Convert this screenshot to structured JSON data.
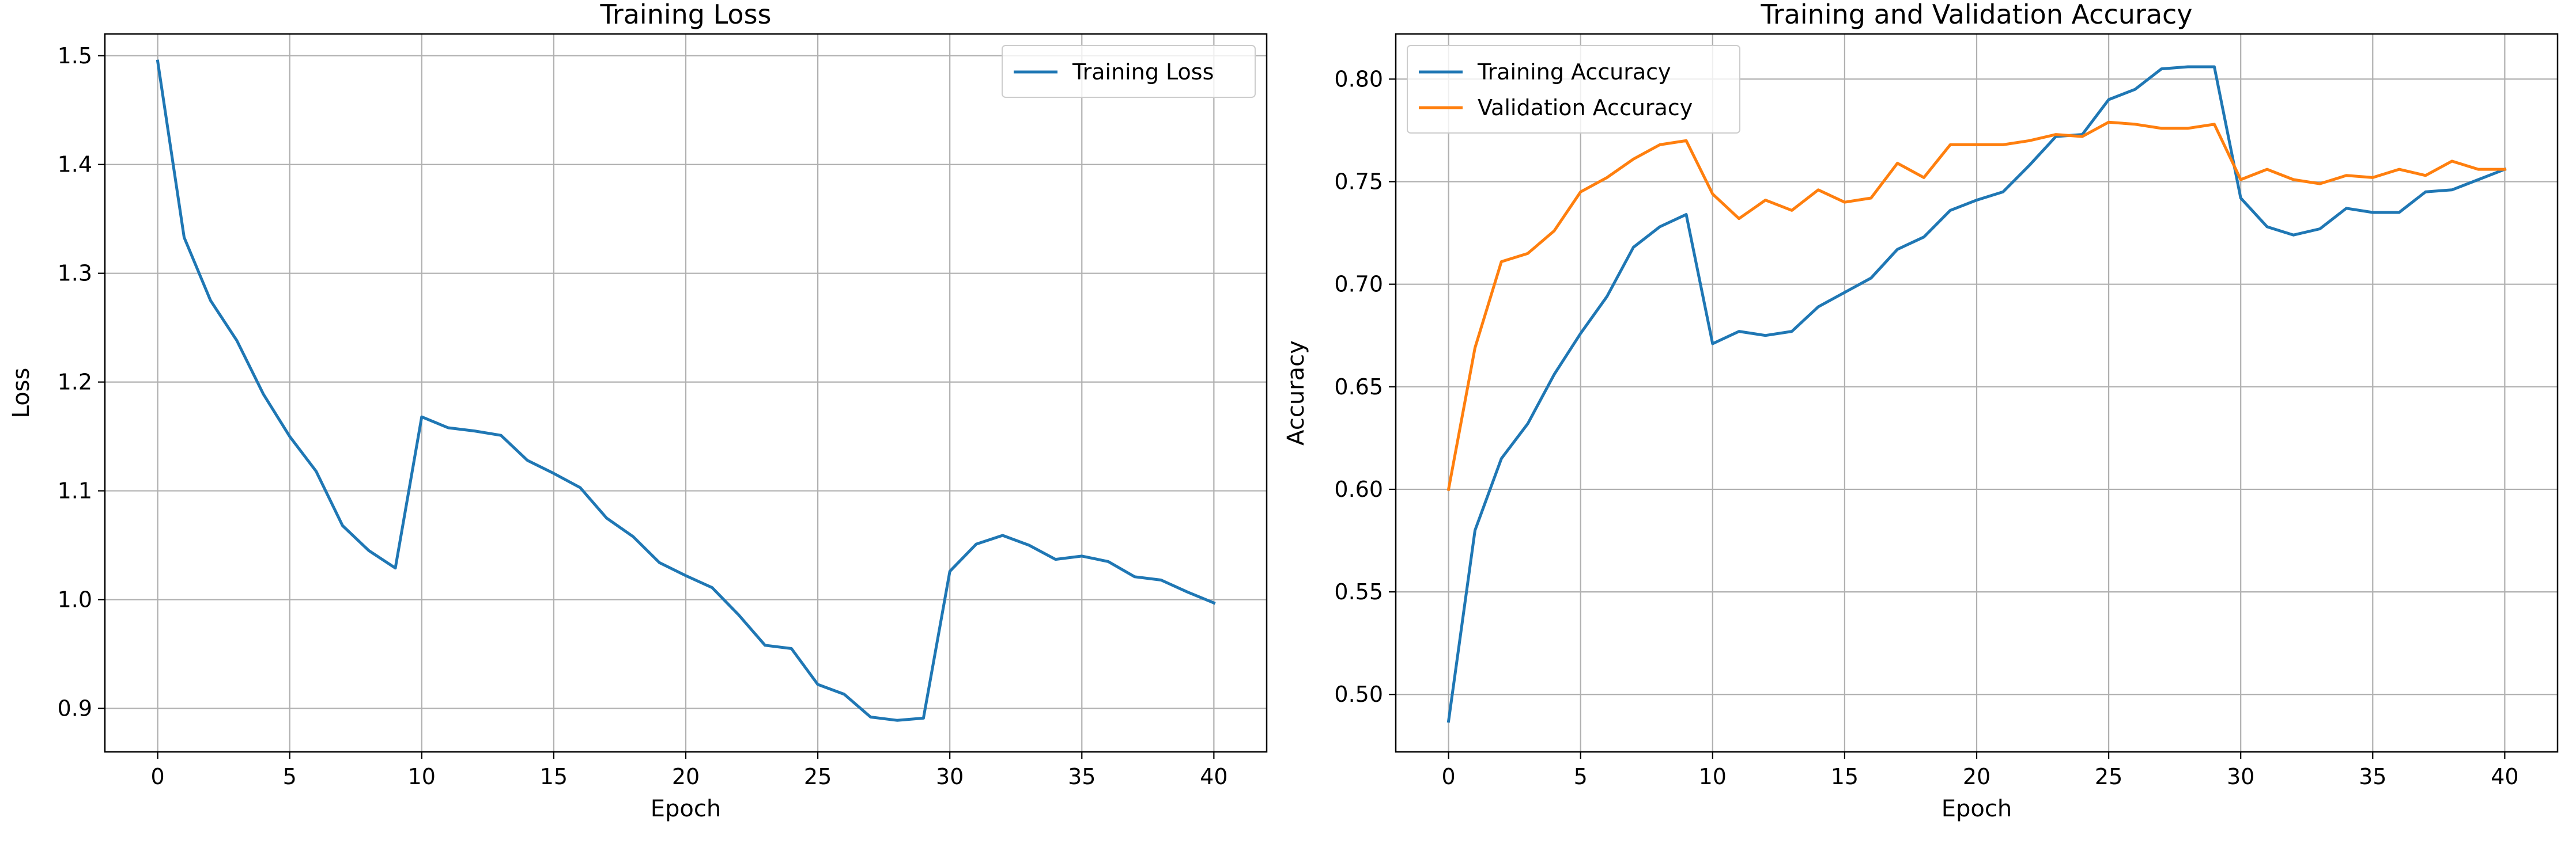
{
  "chart_data": [
    {
      "type": "line",
      "title": "Training Loss",
      "xlabel": "Epoch",
      "ylabel": "Loss",
      "xlim": [
        -2,
        42
      ],
      "ylim": [
        0.86,
        1.52
      ],
      "xticks": [
        0,
        5,
        10,
        15,
        20,
        25,
        30,
        35,
        40
      ],
      "yticks": [
        0.9,
        1.0,
        1.1,
        1.2,
        1.3,
        1.4,
        1.5
      ],
      "ytick_decimals": 1,
      "grid": true,
      "legend": "upper-right",
      "x": [
        0,
        1,
        2,
        3,
        4,
        5,
        6,
        7,
        8,
        9,
        10,
        11,
        12,
        13,
        14,
        15,
        16,
        17,
        18,
        19,
        20,
        21,
        22,
        23,
        24,
        25,
        26,
        27,
        28,
        29,
        30,
        31,
        32,
        33,
        34,
        35,
        36,
        37,
        38,
        39,
        40
      ],
      "series": [
        {
          "name": "Training Loss",
          "color": "#1f77b4",
          "values": [
            1.495,
            1.333,
            1.275,
            1.238,
            1.189,
            1.15,
            1.118,
            1.068,
            1.045,
            1.029,
            1.168,
            1.158,
            1.155,
            1.151,
            1.128,
            1.116,
            1.103,
            1.075,
            1.058,
            1.034,
            1.022,
            1.011,
            0.986,
            0.958,
            0.955,
            0.922,
            0.913,
            0.892,
            0.889,
            0.891,
            1.026,
            1.051,
            1.059,
            1.05,
            1.037,
            1.04,
            1.035,
            1.021,
            1.018,
            1.007,
            0.997
          ]
        }
      ]
    },
    {
      "type": "line",
      "title": "Training and Validation Accuracy",
      "xlabel": "Epoch",
      "ylabel": "Accuracy",
      "xlim": [
        -2,
        42
      ],
      "ylim": [
        0.472,
        0.822
      ],
      "xticks": [
        0,
        5,
        10,
        15,
        20,
        25,
        30,
        35,
        40
      ],
      "yticks": [
        0.5,
        0.55,
        0.6,
        0.65,
        0.7,
        0.75,
        0.8
      ],
      "ytick_decimals": 2,
      "grid": true,
      "legend": "upper-left",
      "x": [
        0,
        1,
        2,
        3,
        4,
        5,
        6,
        7,
        8,
        9,
        10,
        11,
        12,
        13,
        14,
        15,
        16,
        17,
        18,
        19,
        20,
        21,
        22,
        23,
        24,
        25,
        26,
        27,
        28,
        29,
        30,
        31,
        32,
        33,
        34,
        35,
        36,
        37,
        38,
        39,
        40
      ],
      "series": [
        {
          "name": "Training Accuracy",
          "color": "#1f77b4",
          "values": [
            0.487,
            0.58,
            0.615,
            0.632,
            0.656,
            0.676,
            0.694,
            0.718,
            0.728,
            0.734,
            0.671,
            0.677,
            0.675,
            0.677,
            0.689,
            0.696,
            0.703,
            0.717,
            0.723,
            0.736,
            0.741,
            0.745,
            0.758,
            0.772,
            0.773,
            0.79,
            0.795,
            0.805,
            0.806,
            0.806,
            0.742,
            0.728,
            0.724,
            0.727,
            0.737,
            0.735,
            0.735,
            0.745,
            0.746,
            0.751,
            0.756
          ]
        },
        {
          "name": "Validation Accuracy",
          "color": "#ff7f0e",
          "values": [
            0.6,
            0.669,
            0.711,
            0.715,
            0.726,
            0.745,
            0.752,
            0.761,
            0.768,
            0.77,
            0.744,
            0.732,
            0.741,
            0.736,
            0.746,
            0.74,
            0.742,
            0.759,
            0.752,
            0.768,
            0.768,
            0.768,
            0.77,
            0.773,
            0.772,
            0.779,
            0.778,
            0.776,
            0.776,
            0.778,
            0.751,
            0.756,
            0.751,
            0.749,
            0.753,
            0.752,
            0.756,
            0.753,
            0.76,
            0.756,
            0.756
          ]
        }
      ]
    }
  ]
}
